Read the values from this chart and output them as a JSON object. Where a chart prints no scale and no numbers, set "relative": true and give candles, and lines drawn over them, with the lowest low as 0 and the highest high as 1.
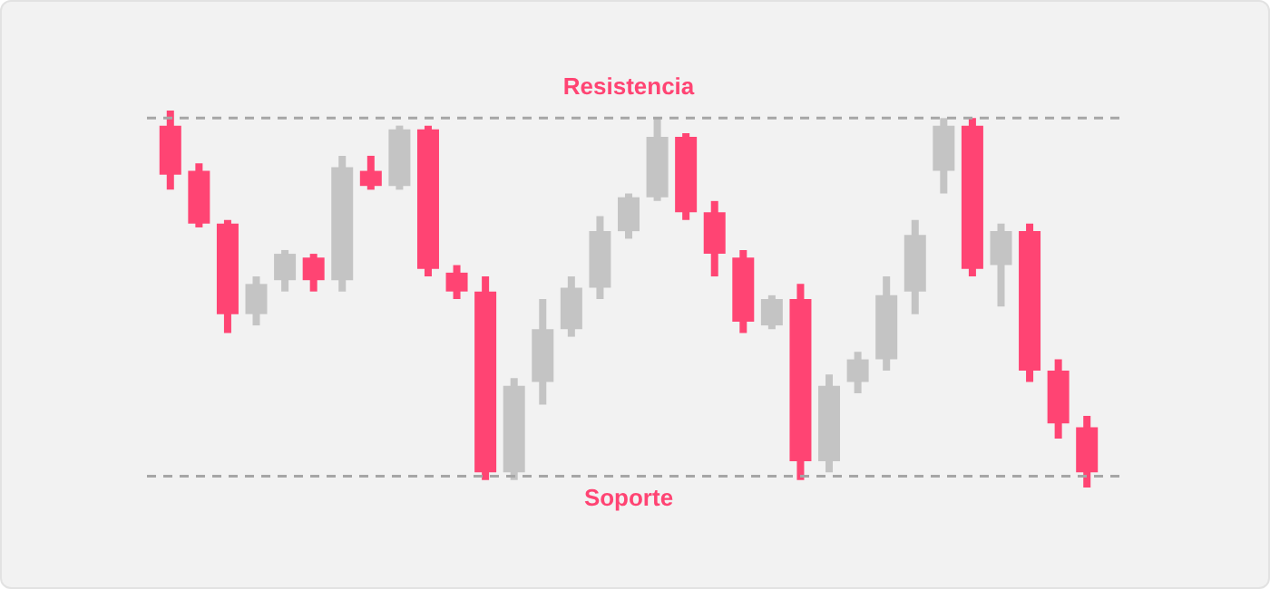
{
  "chart_data": {
    "type": "candlestick",
    "relative": true,
    "categories": [
      null,
      null,
      null,
      null,
      null,
      null,
      null,
      null,
      null,
      null,
      null,
      null,
      null,
      null,
      null,
      null,
      null,
      null,
      null,
      null,
      null,
      null,
      null,
      null,
      null,
      null,
      null,
      null,
      null,
      null,
      null,
      null,
      null
    ],
    "ohlc": [
      [
        0.96,
        1,
        0.79,
        0.83
      ],
      [
        0.84,
        0.86,
        0.69,
        0.7
      ],
      [
        0.7,
        0.71,
        0.41,
        0.46
      ],
      [
        0.46,
        0.56,
        0.43,
        0.54
      ],
      [
        0.55,
        0.63,
        0.52,
        0.62
      ],
      [
        0.61,
        0.62,
        0.52,
        0.55
      ],
      [
        0.55,
        0.88,
        0.52,
        0.85
      ],
      [
        0.84,
        0.88,
        0.79,
        0.8
      ],
      [
        0.8,
        0.96,
        0.79,
        0.95
      ],
      [
        0.95,
        0.96,
        0.56,
        0.58
      ],
      [
        0.57,
        0.59,
        0.5,
        0.52
      ],
      [
        0.52,
        0.56,
        0.02,
        0.04
      ],
      [
        0.04,
        0.29,
        0.02,
        0.27
      ],
      [
        0.28,
        0.5,
        0.22,
        0.42
      ],
      [
        0.42,
        0.56,
        0.4,
        0.53
      ],
      [
        0.53,
        0.72,
        0.5,
        0.68
      ],
      [
        0.68,
        0.78,
        0.66,
        0.77
      ],
      [
        0.77,
        0.98,
        0.76,
        0.93
      ],
      [
        0.93,
        0.94,
        0.71,
        0.73
      ],
      [
        0.73,
        0.76,
        0.56,
        0.62
      ],
      [
        0.61,
        0.63,
        0.41,
        0.44
      ],
      [
        0.43,
        0.51,
        0.42,
        0.5
      ],
      [
        0.5,
        0.54,
        0.02,
        0.07
      ],
      [
        0.07,
        0.3,
        0.04,
        0.27
      ],
      [
        0.28,
        0.36,
        0.25,
        0.34
      ],
      [
        0.34,
        0.56,
        0.31,
        0.51
      ],
      [
        0.52,
        0.71,
        0.46,
        0.67
      ],
      [
        0.84,
        0.98,
        0.78,
        0.96
      ],
      [
        0.96,
        0.98,
        0.56,
        0.58
      ],
      [
        0.59,
        0.7,
        0.48,
        0.68
      ],
      [
        0.68,
        0.7,
        0.28,
        0.31
      ],
      [
        0.31,
        0.34,
        0.13,
        0.17
      ],
      [
        0.16,
        0.19,
        0,
        0.04
      ]
    ],
    "colors": [
      "#ff4473",
      "#ff4473",
      "#ff4473",
      "#c4c4c4",
      "#c4c4c4",
      "#ff4473",
      "#c4c4c4",
      "#ff4473",
      "#c4c4c4",
      "#ff4473",
      "#ff4473",
      "#ff4473",
      "#c4c4c4",
      "#c4c4c4",
      "#c4c4c4",
      "#c4c4c4",
      "#c4c4c4",
      "#c4c4c4",
      "#ff4473",
      "#ff4473",
      "#ff4473",
      "#c4c4c4",
      "#ff4473",
      "#c4c4c4",
      "#c4c4c4",
      "#c4c4c4",
      "#c4c4c4",
      "#c4c4c4",
      "#ff4473",
      "#c4c4c4",
      "#ff4473",
      "#ff4473",
      "#ff4473"
    ],
    "ref_lines": [
      {
        "axis": "y",
        "value": 0.98,
        "label": "Resistencia",
        "color": "#a6a6a6",
        "line_style": "dashed"
      },
      {
        "axis": "y",
        "value": 0.03,
        "label": "Soporte",
        "color": "#a6a6a6",
        "line_style": "dashed"
      }
    ],
    "legend": false
  }
}
